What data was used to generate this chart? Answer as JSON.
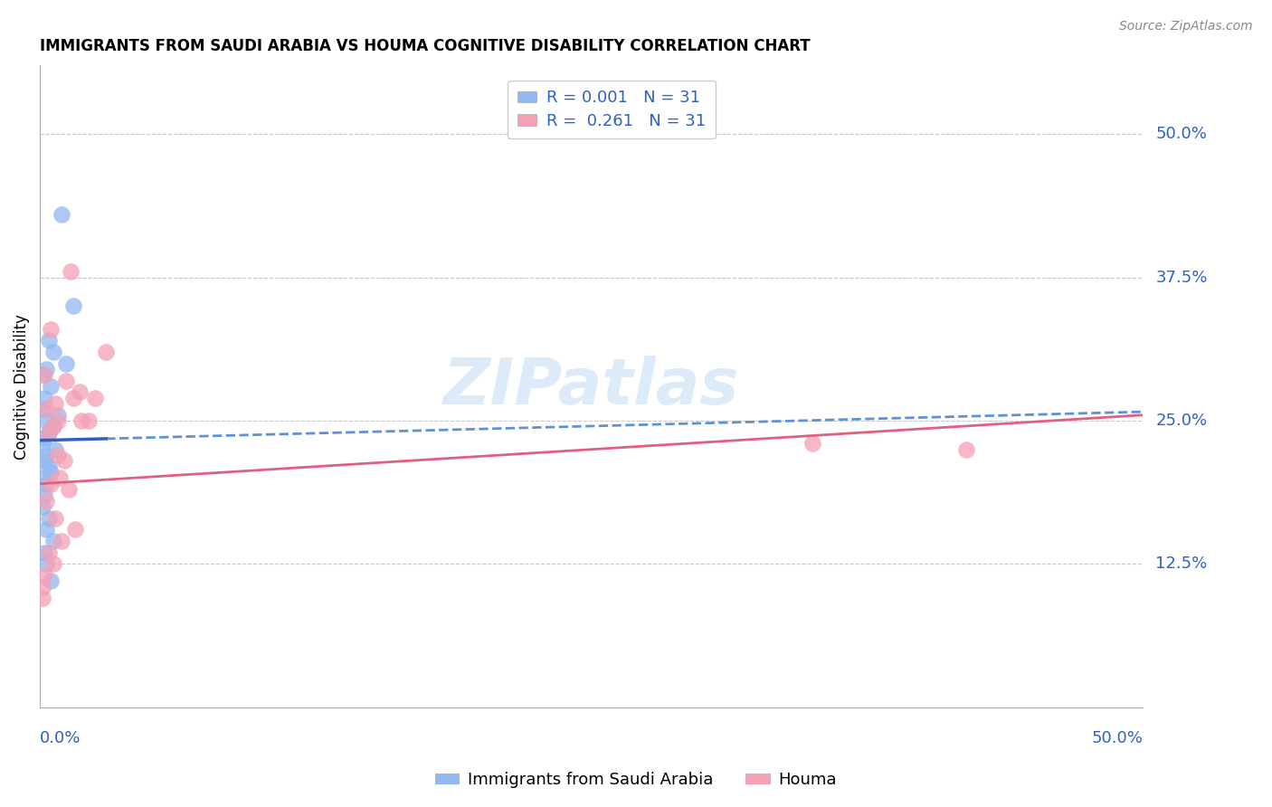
{
  "title": "IMMIGRANTS FROM SAUDI ARABIA VS HOUMA COGNITIVE DISABILITY CORRELATION CHART",
  "source": "Source: ZipAtlas.com",
  "ylabel": "Cognitive Disability",
  "right_yticks": [
    "50.0%",
    "37.5%",
    "25.0%",
    "12.5%"
  ],
  "right_ytick_vals": [
    0.5,
    0.375,
    0.25,
    0.125
  ],
  "xlim": [
    0.0,
    0.5
  ],
  "ylim": [
    0.0,
    0.56
  ],
  "blue_color": "#92b8f0",
  "pink_color": "#f4a0b5",
  "blue_line_solid_color": "#3060c0",
  "blue_line_dash_color": "#6090d8",
  "pink_line_color": "#e06080",
  "blue_scatter_x": [
    0.01,
    0.015,
    0.004,
    0.006,
    0.012,
    0.003,
    0.001,
    0.005,
    0.002,
    0.001,
    0.008,
    0.003,
    0.006,
    0.004,
    0.002,
    0.001,
    0.007,
    0.003,
    0.002,
    0.004,
    0.005,
    0.001,
    0.003,
    0.002,
    0.001,
    0.004,
    0.003,
    0.006,
    0.002,
    0.003,
    0.005
  ],
  "blue_scatter_y": [
    0.43,
    0.35,
    0.32,
    0.31,
    0.3,
    0.295,
    0.29,
    0.28,
    0.27,
    0.26,
    0.255,
    0.25,
    0.245,
    0.24,
    0.235,
    0.23,
    0.225,
    0.22,
    0.215,
    0.21,
    0.205,
    0.2,
    0.195,
    0.185,
    0.175,
    0.165,
    0.155,
    0.145,
    0.135,
    0.125,
    0.11
  ],
  "pink_scatter_x": [
    0.001,
    0.005,
    0.012,
    0.018,
    0.015,
    0.007,
    0.003,
    0.008,
    0.006,
    0.004,
    0.022,
    0.025,
    0.011,
    0.03,
    0.35,
    0.42,
    0.013,
    0.016,
    0.002,
    0.019,
    0.008,
    0.005,
    0.003,
    0.007,
    0.01,
    0.004,
    0.006,
    0.002,
    0.014,
    0.009,
    0.001
  ],
  "pink_scatter_y": [
    0.095,
    0.33,
    0.285,
    0.275,
    0.27,
    0.265,
    0.26,
    0.25,
    0.245,
    0.24,
    0.25,
    0.27,
    0.215,
    0.31,
    0.23,
    0.225,
    0.19,
    0.155,
    0.29,
    0.25,
    0.22,
    0.195,
    0.18,
    0.165,
    0.145,
    0.135,
    0.125,
    0.115,
    0.38,
    0.2,
    0.105
  ],
  "blue_line_x_solid_end": 0.03,
  "background_color": "#ffffff",
  "grid_color": "#c8c8c8"
}
